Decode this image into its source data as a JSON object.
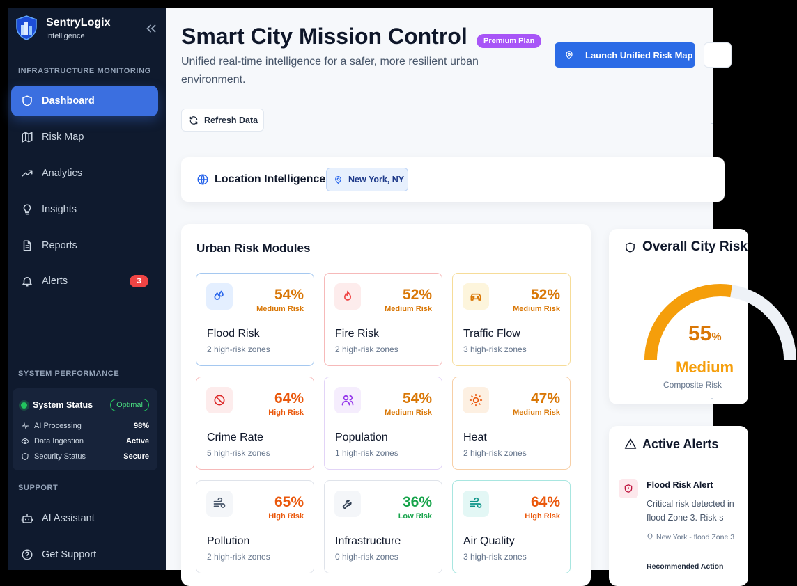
{
  "brand": {
    "name": "SentryLogix",
    "subtitle": "Intelligence"
  },
  "sidebar": {
    "section_infrastructure": "INFRASTRUCTURE MONITORING",
    "items": [
      {
        "label": "Dashboard",
        "icon": "shield-icon",
        "active": true
      },
      {
        "label": "Risk Map",
        "icon": "map-icon"
      },
      {
        "label": "Analytics",
        "icon": "trending-up-icon"
      },
      {
        "label": "Insights",
        "icon": "lightbulb-icon"
      },
      {
        "label": "Reports",
        "icon": "document-icon"
      },
      {
        "label": "Alerts",
        "icon": "bell-icon",
        "badge": "3"
      }
    ],
    "section_performance": "SYSTEM PERFORMANCE",
    "performance": {
      "status_label": "System Status",
      "status_value": "Optimal",
      "rows": [
        {
          "label": "AI Processing",
          "value": "98%",
          "icon": "activity-icon"
        },
        {
          "label": "Data Ingestion",
          "value": "Active",
          "icon": "eye-icon"
        },
        {
          "label": "Security Status",
          "value": "Secure",
          "icon": "shield-icon"
        }
      ]
    },
    "section_support": "SUPPORT",
    "support_items": [
      {
        "label": "AI Assistant",
        "icon": "bot-icon"
      },
      {
        "label": "Get Support",
        "icon": "help-circle-icon"
      }
    ]
  },
  "header": {
    "title": "Smart City Mission Control",
    "plan_badge": "Premium Plan",
    "subtitle": "Unified real-time intelligence for a safer, more resilient urban environment.",
    "launch_button": "Launch Unified Risk Map",
    "refresh_button": "Refresh Data"
  },
  "location": {
    "title": "Location Intelligence",
    "value": "New York, NY"
  },
  "modules": {
    "title": "Urban Risk Modules",
    "tiles": [
      {
        "name": "Flood Risk",
        "percent": "54%",
        "level": "Medium Risk",
        "zones": "2 high-risk zones",
        "icon": "droplets-icon",
        "color": "#d97706",
        "border": "#a5c8f0",
        "icon_bg": "#e4efff",
        "icon_color": "#2563eb"
      },
      {
        "name": "Fire Risk",
        "percent": "52%",
        "level": "Medium Risk",
        "zones": "2 high-risk zones",
        "icon": "flame-icon",
        "color": "#d97706",
        "border": "#f6b9b9",
        "icon_bg": "#fdecec",
        "icon_color": "#ef4444"
      },
      {
        "name": "Traffic Flow",
        "percent": "52%",
        "level": "Medium Risk",
        "zones": "3 high-risk zones",
        "icon": "car-icon",
        "color": "#d97706",
        "border": "#f6dc98",
        "icon_bg": "#fdf5dc",
        "icon_color": "#d97706"
      },
      {
        "name": "Crime Rate",
        "percent": "64%",
        "level": "High Risk",
        "zones": "5 high-risk zones",
        "icon": "ban-icon",
        "color": "#ea580c",
        "border": "#f6b9b9",
        "icon_bg": "#fdecec",
        "icon_color": "#dc2626"
      },
      {
        "name": "Population",
        "percent": "54%",
        "level": "Medium Risk",
        "zones": "1 high-risk zones",
        "icon": "users-icon",
        "color": "#d97706",
        "border": "#e2d4f7",
        "icon_bg": "#f5edfd",
        "icon_color": "#9333ea"
      },
      {
        "name": "Heat",
        "percent": "47%",
        "level": "Medium Risk",
        "zones": "2 high-risk zones",
        "icon": "sun-icon",
        "color": "#d97706",
        "border": "#f7cfa6",
        "icon_bg": "#fdf0e2",
        "icon_color": "#ea580c"
      },
      {
        "name": "Pollution",
        "percent": "65%",
        "level": "High Risk",
        "zones": "2 high-risk zones",
        "icon": "wind-icon",
        "color": "#ea580c",
        "border": "#dfe3ea",
        "icon_bg": "#f4f6f9",
        "icon_color": "#475569"
      },
      {
        "name": "Infrastructure",
        "percent": "36%",
        "level": "Low Risk",
        "zones": "0 high-risk zones",
        "icon": "wrench-icon",
        "color": "#16a34a",
        "border": "#dfe3ea",
        "icon_bg": "#f4f6f9",
        "icon_color": "#334155"
      },
      {
        "name": "Air Quality",
        "percent": "64%",
        "level": "High Risk",
        "zones": "3 high-risk zones",
        "icon": "wind-icon",
        "color": "#ea580c",
        "border": "#a8e6e0",
        "icon_bg": "#e3f7f5",
        "icon_color": "#0d9488"
      }
    ]
  },
  "overall": {
    "title": "Overall City Risk",
    "value": "55",
    "unit": "%",
    "gauge_fraction": 0.55,
    "level": "Medium",
    "subtitle": "Composite Risk"
  },
  "alerts": {
    "title": "Active Alerts",
    "items": [
      {
        "title": "Flood Risk Alert",
        "description": "Critical risk detected in flood Zone 3. Risk s",
        "location": "New York - flood Zone 3",
        "action_label": "Recommended Action"
      }
    ]
  },
  "colors": {
    "accent": "#2b6be6",
    "sidebar_bg": "#0f1a2e",
    "premium": "#a855f7",
    "medium": "#d97706",
    "high": "#ea580c",
    "low": "#16a34a"
  }
}
